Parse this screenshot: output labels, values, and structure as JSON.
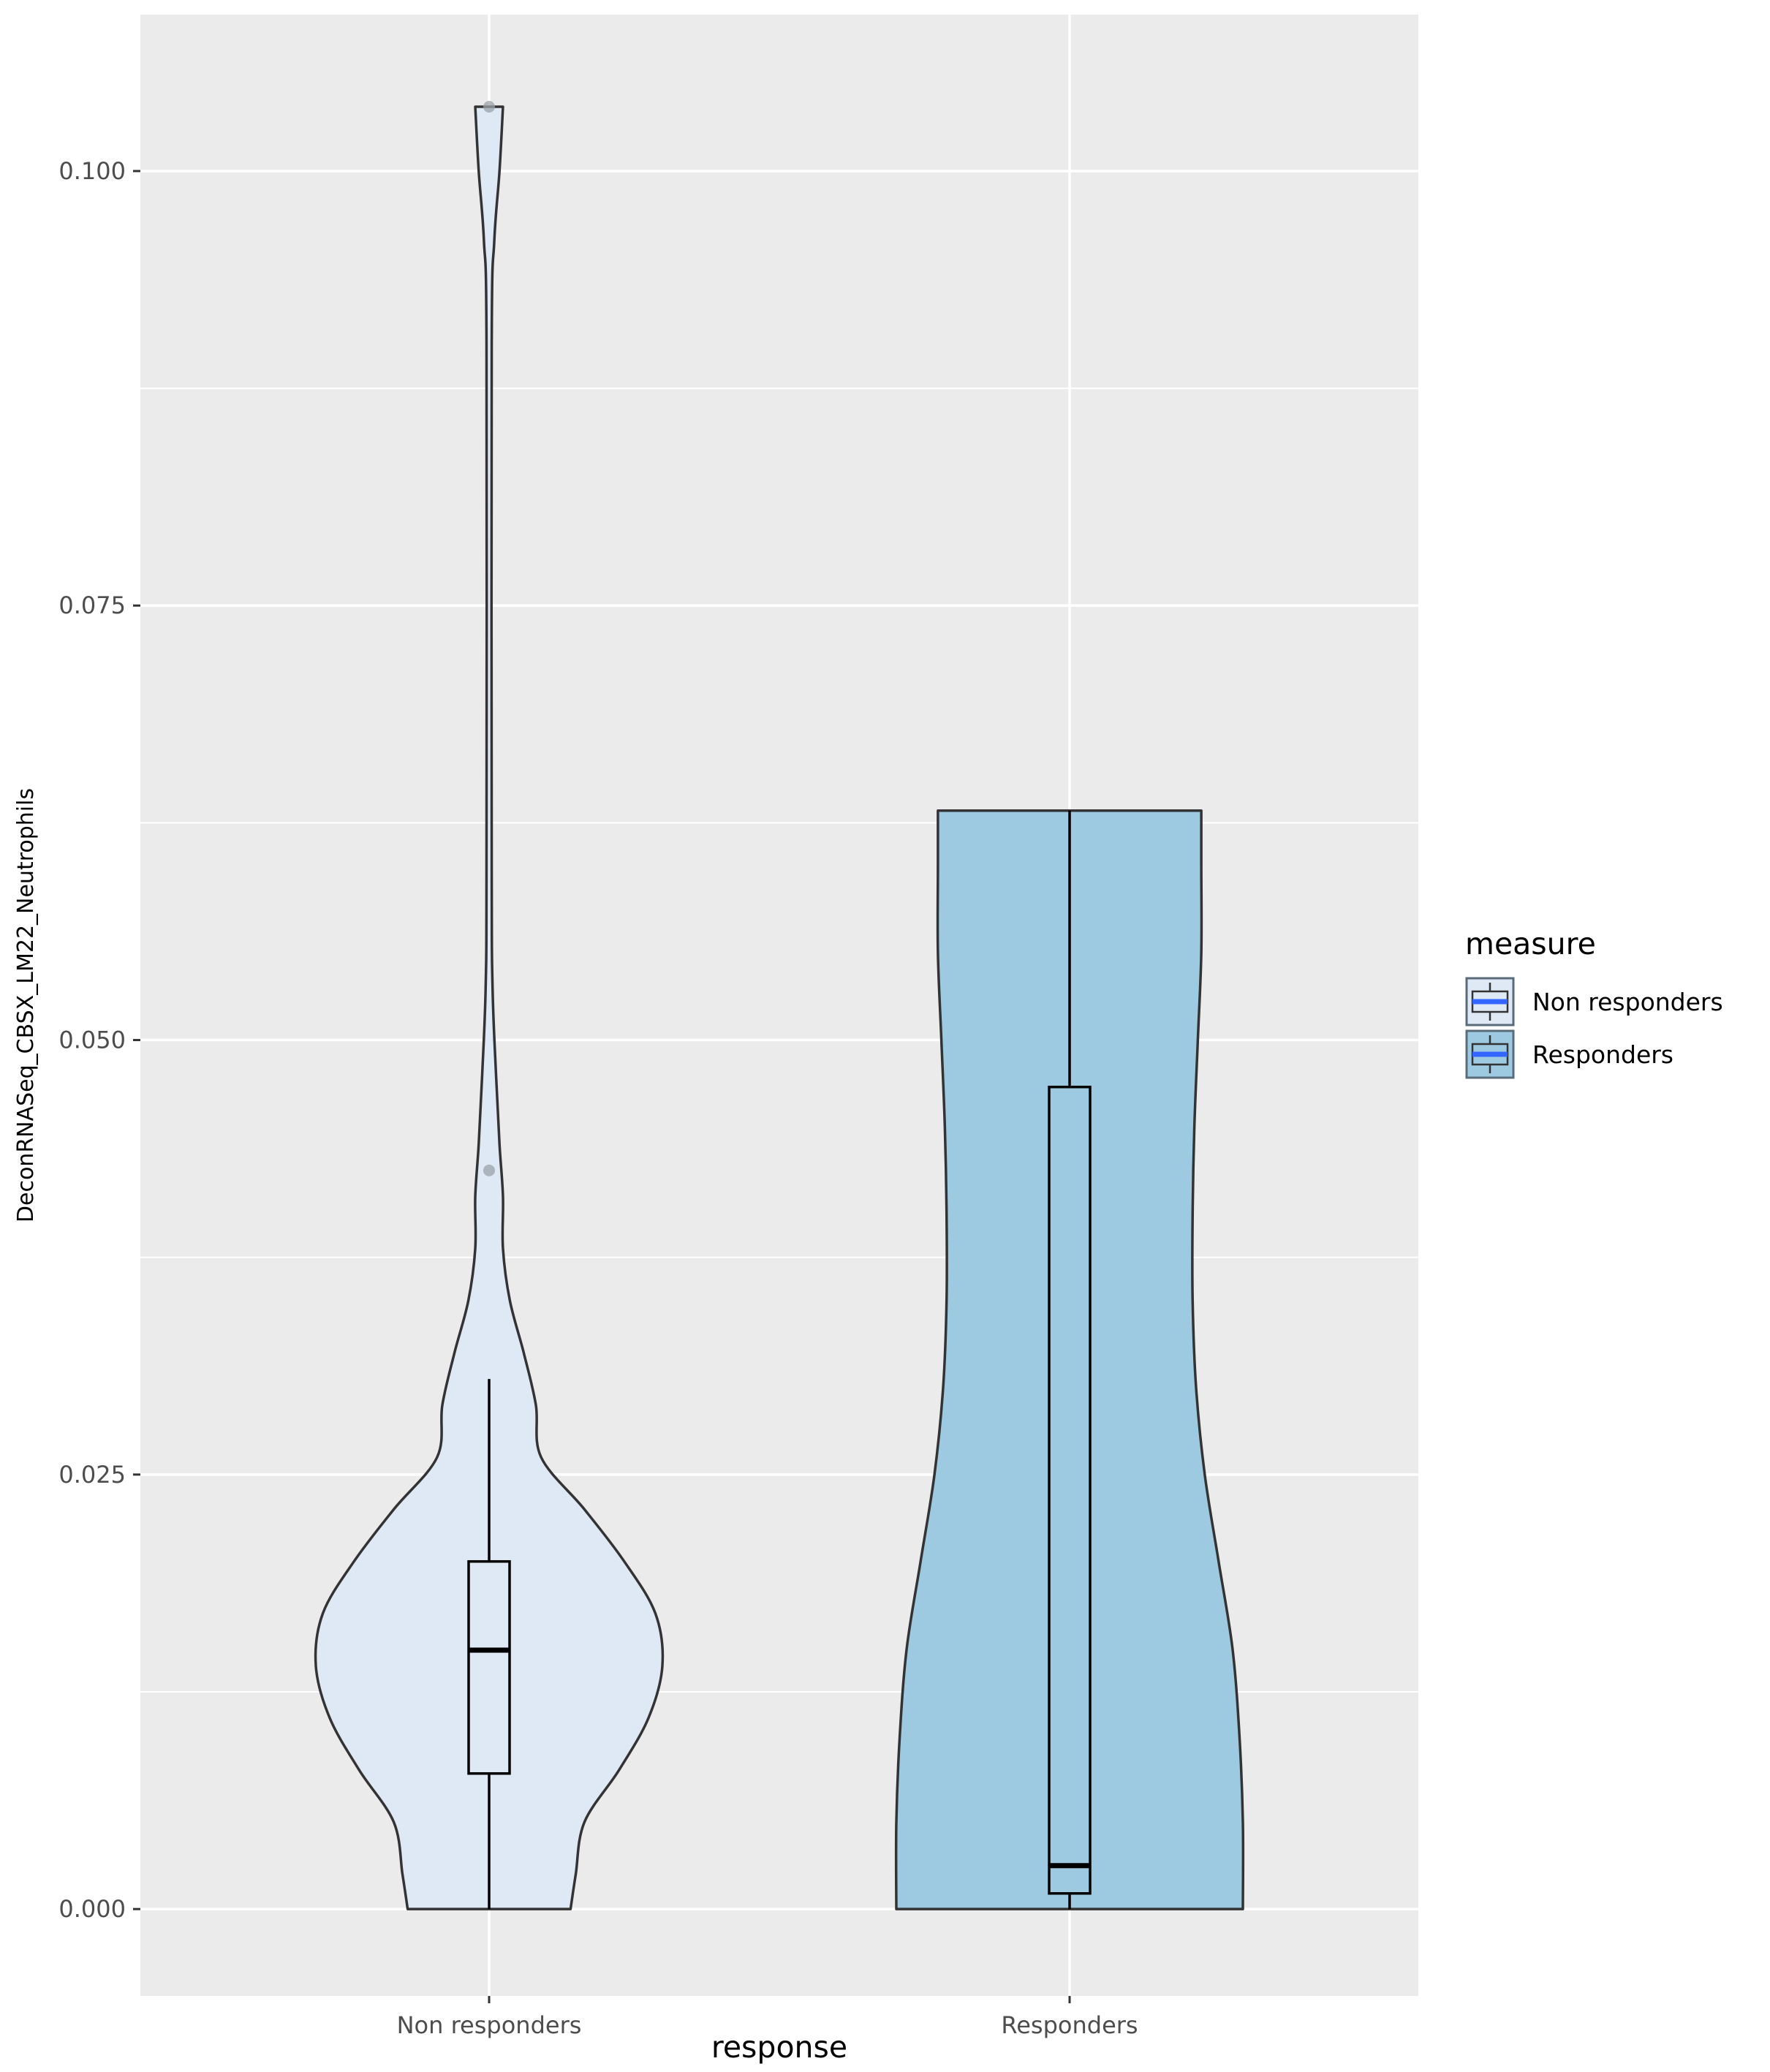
{
  "chart_data": {
    "type": "violin",
    "title": "",
    "xlabel": "response",
    "ylabel": "DeconRNASeq_CBSX_LM22_Neutrophils",
    "categories": [
      "Non responders",
      "Responders"
    ],
    "ylim": [
      -0.005,
      0.109
    ],
    "y_ticks": [
      0.0,
      0.025,
      0.05,
      0.075,
      0.1
    ],
    "y_tick_labels": [
      "0.000",
      "0.025",
      "0.050",
      "0.075",
      "0.100"
    ],
    "grid": true,
    "legend": {
      "title": "measure",
      "position": "right",
      "entries": [
        "Non responders",
        "Responders"
      ]
    },
    "series": [
      {
        "category": "Non responders",
        "fill": "#dee9f5",
        "violin_range": [
          0.0,
          0.1037
        ],
        "box": {
          "whisker_low": 0.0,
          "q1": 0.0078,
          "median": 0.0149,
          "q3": 0.02,
          "whisker_high": 0.0305
        },
        "outliers": [
          0.0425,
          0.1037
        ],
        "density_profile": [
          [
            0.0,
            0.47
          ],
          [
            0.002,
            0.5
          ],
          [
            0.005,
            0.55
          ],
          [
            0.008,
            0.75
          ],
          [
            0.011,
            0.92
          ],
          [
            0.014,
            1.0
          ],
          [
            0.017,
            0.96
          ],
          [
            0.02,
            0.78
          ],
          [
            0.023,
            0.55
          ],
          [
            0.026,
            0.3
          ],
          [
            0.029,
            0.27
          ],
          [
            0.032,
            0.2
          ],
          [
            0.035,
            0.12
          ],
          [
            0.038,
            0.08
          ],
          [
            0.041,
            0.08
          ],
          [
            0.044,
            0.06
          ],
          [
            0.048,
            0.04
          ],
          [
            0.053,
            0.02
          ],
          [
            0.06,
            0.015
          ],
          [
            0.09,
            0.015
          ],
          [
            0.096,
            0.03
          ],
          [
            0.1,
            0.06
          ],
          [
            0.1037,
            0.08
          ]
        ]
      },
      {
        "category": "Responders",
        "fill": "#9ecae1",
        "violin_range": [
          0.0,
          0.0632
        ],
        "box": {
          "whisker_low": 0.0,
          "q1": 0.0009,
          "median": 0.0025,
          "q3": 0.0473,
          "whisker_high": 0.0632
        },
        "outliers": [],
        "density_profile": [
          [
            0.0,
            1.0
          ],
          [
            0.005,
            1.0
          ],
          [
            0.01,
            0.98
          ],
          [
            0.015,
            0.94
          ],
          [
            0.02,
            0.86
          ],
          [
            0.025,
            0.78
          ],
          [
            0.03,
            0.73
          ],
          [
            0.035,
            0.71
          ],
          [
            0.04,
            0.71
          ],
          [
            0.045,
            0.72
          ],
          [
            0.05,
            0.74
          ],
          [
            0.055,
            0.76
          ],
          [
            0.06,
            0.76
          ],
          [
            0.0632,
            0.76
          ]
        ]
      }
    ],
    "colors": {
      "panel_background": "#ebebeb",
      "grid_line": "#ffffff",
      "violin_outline": "#333333",
      "box_outline": "#000000",
      "outlier": "#9aa1a8",
      "legend_median": "#3366ff"
    }
  }
}
